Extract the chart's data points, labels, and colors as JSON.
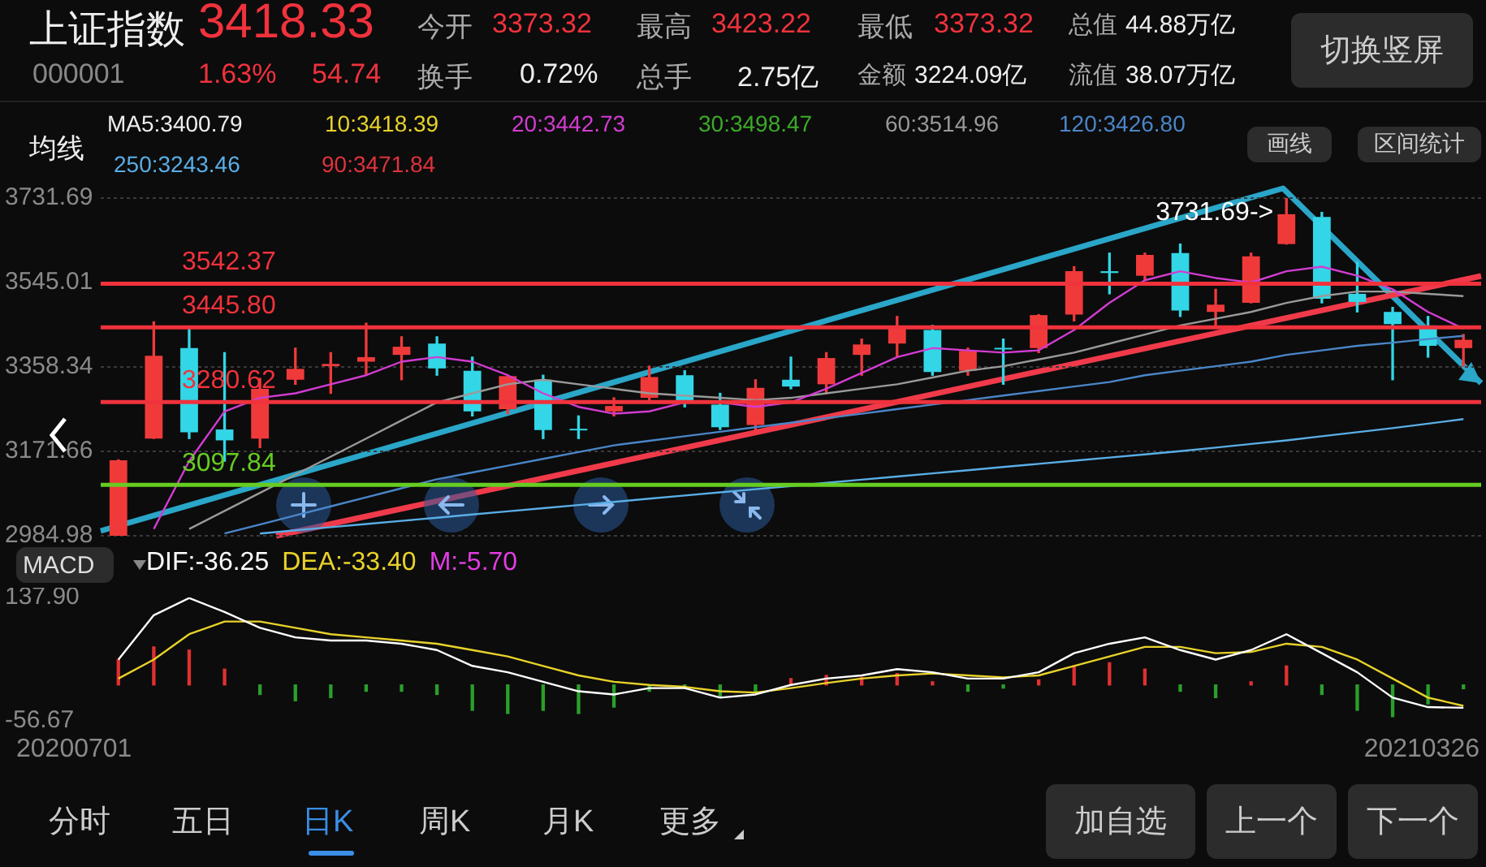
{
  "chart_data": [
    {
      "type": "candlestick",
      "tick_labels": "y",
      "grid": "y",
      "categories": [
        null,
        null,
        null,
        null,
        null,
        null,
        null,
        null,
        null,
        null,
        null,
        null,
        null,
        null,
        null,
        null,
        null,
        null,
        null,
        null,
        null,
        null,
        null,
        null,
        null,
        null,
        null,
        null,
        null,
        null,
        null,
        null,
        null,
        null,
        null,
        null,
        null,
        null,
        null
      ],
      "ohlc": [
        [
          2985,
          3153,
          2984.98,
          3152
        ],
        [
          3200,
          3458,
          3200,
          3383
        ],
        [
          3400,
          3445,
          3200,
          3214
        ],
        [
          3220,
          3390,
          3150,
          3196
        ],
        [
          3200,
          3333,
          3180,
          3310
        ],
        [
          3330,
          3400,
          3320,
          3354
        ],
        [
          3360,
          3390,
          3300,
          3365
        ],
        [
          3370,
          3455,
          3340,
          3380
        ],
        [
          3385,
          3425,
          3330,
          3403
        ],
        [
          3410,
          3425,
          3340,
          3355
        ],
        [
          3350,
          3380,
          3250,
          3260
        ],
        [
          3265,
          3340,
          3255,
          3338
        ],
        [
          3330,
          3340,
          3200,
          3219
        ],
        [
          3220,
          3250,
          3200,
          3218
        ],
        [
          3260,
          3290,
          3250,
          3272
        ],
        [
          3290,
          3360,
          3280,
          3336
        ],
        [
          3340,
          3350,
          3270,
          3278
        ],
        [
          3275,
          3300,
          3220,
          3225
        ],
        [
          3230,
          3330,
          3210,
          3312
        ],
        [
          3330,
          3380,
          3310,
          3315
        ],
        [
          3320,
          3390,
          3300,
          3378
        ],
        [
          3385,
          3420,
          3340,
          3408
        ],
        [
          3410,
          3470,
          3380,
          3444
        ],
        [
          3440,
          3450,
          3340,
          3347
        ],
        [
          3350,
          3400,
          3340,
          3394
        ],
        [
          3400,
          3420,
          3320,
          3397
        ],
        [
          3400,
          3474,
          3390,
          3473
        ],
        [
          3474,
          3580,
          3460,
          3570
        ],
        [
          3570,
          3610,
          3520,
          3566
        ],
        [
          3560,
          3610,
          3550,
          3606
        ],
        [
          3610,
          3630,
          3470,
          3483
        ],
        [
          3480,
          3530,
          3450,
          3496
        ],
        [
          3500,
          3610,
          3500,
          3603
        ],
        [
          3630,
          3731.69,
          3630,
          3696
        ],
        [
          3690,
          3700,
          3500,
          3509
        ],
        [
          3520,
          3590,
          3480,
          3502
        ],
        [
          3480,
          3490,
          3330,
          3453
        ],
        [
          3450,
          3470,
          3380,
          3405
        ],
        [
          3400,
          3430,
          3360,
          3418.33
        ]
      ],
      "colors": [
        "#f03a3a",
        "#f03a3a",
        "#33d6e6",
        "#33d6e6",
        "#f03a3a",
        "#f03a3a",
        "#f03a3a",
        "#f03a3a",
        "#f03a3a",
        "#33d6e6",
        "#33d6e6",
        "#f03a3a",
        "#33d6e6",
        "#33d6e6",
        "#f03a3a",
        "#f03a3a",
        "#33d6e6",
        "#33d6e6",
        "#f03a3a",
        "#33d6e6",
        "#f03a3a",
        "#f03a3a",
        "#f03a3a",
        "#33d6e6",
        "#f03a3a",
        "#33d6e6",
        "#f03a3a",
        "#f03a3a",
        "#33d6e6",
        "#f03a3a",
        "#33d6e6",
        "#f03a3a",
        "#f03a3a",
        "#f03a3a",
        "#33d6e6",
        "#33d6e6",
        "#33d6e6",
        "#33d6e6",
        "#f03a3a"
      ],
      "series": [
        {
          "type": "line",
          "color": "#d23cd2",
          "values": [
            null,
            3000,
            3150,
            3260,
            3290,
            3300,
            3320,
            3340,
            3370,
            3380,
            3370,
            3340,
            3300,
            3270,
            3255,
            3260,
            3280,
            3280,
            3270,
            3280,
            3310,
            3345,
            3380,
            3400,
            3395,
            3390,
            3395,
            3440,
            3500,
            3550,
            3570,
            3555,
            3545,
            3570,
            3580,
            3560,
            3530,
            3480,
            3443
          ]
        },
        {
          "type": "line",
          "color": "#9a9a9a",
          "values": [
            null,
            null,
            3000,
            3040,
            3080,
            3120,
            3160,
            3200,
            3240,
            3280,
            3300,
            3320,
            3330,
            3320,
            3310,
            3300,
            3295,
            3290,
            3285,
            3290,
            3300,
            3310,
            3320,
            3335,
            3350,
            3360,
            3375,
            3390,
            3410,
            3430,
            3450,
            3465,
            3480,
            3500,
            3515,
            3525,
            3525,
            3520,
            3515
          ]
        },
        {
          "type": "line",
          "color": "#4a86c8",
          "values": [
            null,
            null,
            null,
            2990,
            3010,
            3030,
            3050,
            3070,
            3090,
            3110,
            3125,
            3140,
            3155,
            3170,
            3185,
            3195,
            3205,
            3215,
            3225,
            3235,
            3245,
            3255,
            3265,
            3275,
            3285,
            3295,
            3305,
            3315,
            3325,
            3340,
            3350,
            3360,
            3370,
            3385,
            3395,
            3405,
            3412,
            3420,
            3427
          ]
        },
        {
          "type": "line",
          "color": "#5aaee6",
          "values": [
            null,
            null,
            null,
            null,
            2990,
            2997,
            3004,
            3011,
            3018,
            3025,
            3032,
            3039,
            3046,
            3053,
            3060,
            3067,
            3074,
            3081,
            3088,
            3095,
            3102,
            3109,
            3116,
            3123,
            3130,
            3137,
            3144,
            3151,
            3158,
            3165,
            3172,
            3180,
            3188,
            3196,
            3205,
            3214,
            3223,
            3233,
            3243
          ]
        }
      ],
      "ylim": [
        2984.98,
        3731.69
      ],
      "yticks": [
        {
          "value": 3731.69,
          "label": "3731.69"
        },
        {
          "value": 3545.01,
          "label": "3545.01"
        },
        {
          "value": 3358.34,
          "label": "3358.34"
        },
        {
          "value": 3171.66,
          "label": "3171.66"
        },
        {
          "value": 2984.98,
          "label": "2984.98"
        }
      ],
      "ref_lines": [
        {
          "axis": "y",
          "value": 3542.37,
          "label": "3542.37",
          "color": "#f0323c"
        },
        {
          "axis": "y",
          "value": 3445.8,
          "label": "3445.80",
          "color": "#f0323c"
        },
        {
          "axis": "y",
          "value": 3280.62,
          "label": "3280.62",
          "color": "#f0323c"
        },
        {
          "axis": "y",
          "value": 3097.84,
          "label": "3097.84",
          "color": "#66cc22"
        }
      ],
      "annotations": [
        "上证指数",
        "3418.33",
        "000001",
        "1.63%",
        "54.74",
        "今开",
        "3373.32",
        "换手",
        "0.72%",
        "最高",
        "3423.22",
        "总手",
        "2.75亿",
        "最低",
        "3373.32",
        "金额",
        "3224.09亿",
        "总值",
        "44.88万亿",
        "流值",
        "38.07万亿",
        "切换竖屏",
        "均线",
        "MA5:3400.79",
        "10:3418.39",
        "20:3442.73",
        "30:3498.47",
        "60:3514.96",
        "120:3426.80",
        "250:3243.46",
        "90:3471.84",
        "画线",
        "区间统计",
        "3731.69->"
      ]
    },
    {
      "type": "line",
      "tick_labels": "y",
      "categories": [
        null,
        null,
        null,
        null,
        null,
        null,
        null,
        null,
        null,
        null,
        null,
        null,
        null,
        null,
        null,
        null,
        null,
        null,
        null,
        null,
        null,
        null,
        null,
        null,
        null,
        null,
        null,
        null,
        null,
        null,
        null,
        null,
        null,
        null,
        null,
        null,
        null,
        null,
        null
      ],
      "series": [
        {
          "type": "line",
          "color": "#ffffff",
          "values": [
            40,
            110,
            137,
            115,
            90,
            75,
            70,
            70,
            65,
            55,
            30,
            20,
            5,
            -10,
            -15,
            -5,
            -5,
            -20,
            -15,
            0,
            10,
            15,
            25,
            20,
            10,
            10,
            20,
            50,
            65,
            75,
            55,
            40,
            55,
            80,
            50,
            20,
            -20,
            -35,
            -36
          ]
        },
        {
          "type": "line",
          "color": "#e8d22a",
          "values": [
            10,
            40,
            80,
            100,
            100,
            90,
            80,
            75,
            70,
            65,
            55,
            45,
            30,
            15,
            5,
            0,
            -3,
            -10,
            -12,
            -5,
            3,
            10,
            15,
            18,
            15,
            12,
            15,
            30,
            45,
            60,
            60,
            50,
            52,
            65,
            60,
            40,
            10,
            -20,
            -33
          ]
        },
        {
          "type": "bar",
          "colors": [
            "#e03030",
            "#e03030",
            "#e03030",
            "#e03030",
            "#2aa02a",
            "#2aa02a",
            "#2aa02a",
            "#2aa02a",
            "#2aa02a",
            "#2aa02a",
            "#2aa02a",
            "#2aa02a",
            "#2aa02a",
            "#2aa02a",
            "#2aa02a",
            "#2aa02a",
            "#2aa02a",
            "#2aa02a",
            "#2aa02a",
            "#e03030",
            "#e03030",
            "#e03030",
            "#e03030",
            "#e03030",
            "#2aa02a",
            "#2aa02a",
            "#e03030",
            "#e03030",
            "#e03030",
            "#e03030",
            "#2aa02a",
            "#2aa02a",
            "#e03030",
            "#e03030",
            "#2aa02a",
            "#2aa02a",
            "#2aa02a",
            "#2aa02a",
            "#2aa02a"
          ],
          "values": [
            40,
            60,
            55,
            25,
            -15,
            -25,
            -20,
            -10,
            -10,
            -15,
            -40,
            -45,
            -40,
            -45,
            -35,
            -10,
            -5,
            -20,
            -10,
            10,
            15,
            12,
            18,
            5,
            -10,
            -5,
            8,
            30,
            35,
            25,
            -10,
            -20,
            5,
            30,
            -15,
            -40,
            -50,
            -30,
            -6
          ]
        }
      ],
      "ylim": [
        -56.67,
        137.9
      ],
      "yticks": [
        {
          "value": 137.9,
          "label": "137.90"
        },
        {
          "value": -56.67,
          "label": "-56.67"
        }
      ],
      "annotations": [
        "MACD",
        "20200701",
        "20210326",
        "DIF:-36.25",
        "DEA:-33.40",
        "M:-5.70",
        "分时",
        "五日",
        "日K",
        "周K",
        "月K",
        "更多",
        "加自选",
        "上一个",
        "下一个"
      ]
    }
  ]
}
